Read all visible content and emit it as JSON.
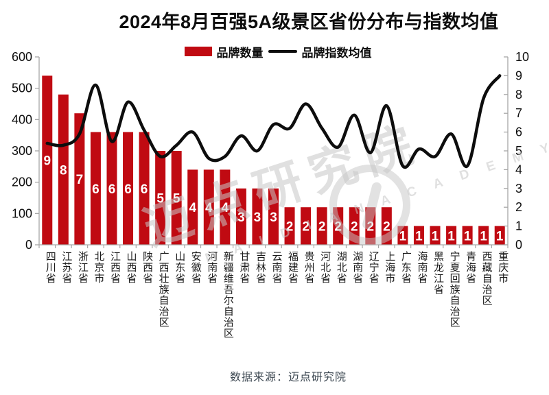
{
  "header": {
    "title": "2024年8月百强5A级景区省份分布与指数均值"
  },
  "legend": {
    "bar_label": "品牌数量",
    "line_label": "品牌指数均值"
  },
  "watermark": {
    "cn": "迈点研究院",
    "en": "M A I D I A N   A C A D E M Y"
  },
  "footer": {
    "source": "数据来源：迈点研究院"
  },
  "colors": {
    "bar": "#c00a12",
    "line": "#0d0d0d",
    "axis": "#a6a6a6",
    "axis_text": "#0d0d0d",
    "bar_label_text": "#ffffff",
    "source_text": "#3d4852",
    "watermark": "#c6c6c6"
  },
  "chart_data": {
    "type": "bar+line",
    "title": "2024年8月百强5A级景区省份分布与指数均值",
    "legend_position": "top",
    "grid": false,
    "categories": [
      "四川省",
      "江苏省",
      "浙江省",
      "北京市",
      "江西省",
      "山西省",
      "陕西省",
      "广西壮族自治区",
      "山东省",
      "安徽省",
      "河南省",
      "新疆维吾尔自治区",
      "甘肃省",
      "吉林省",
      "云南省",
      "福建省",
      "贵州省",
      "河北省",
      "湖北省",
      "湖南省",
      "辽宁省",
      "上海市",
      "广东省",
      "海南省",
      "黑龙江省",
      "宁夏回族自治区",
      "青海省",
      "西藏自治区",
      "重庆市"
    ],
    "series": [
      {
        "name": "品牌数量",
        "kind": "bar",
        "axis": "left",
        "unit_scale": 60,
        "values": [
          9,
          8,
          7,
          6,
          6,
          6,
          6,
          5,
          5,
          4,
          4,
          4,
          3,
          3,
          3,
          2,
          2,
          2,
          2,
          2,
          2,
          2,
          1,
          1,
          1,
          1,
          1,
          1,
          1
        ]
      },
      {
        "name": "品牌指数均值",
        "kind": "line",
        "axis": "right",
        "values": [
          5.4,
          5.3,
          5.9,
          8.5,
          5.5,
          7.6,
          6.1,
          4.7,
          5.3,
          6.0,
          4.6,
          4.7,
          5.8,
          5.0,
          6.4,
          6.2,
          7.5,
          6.2,
          5.2,
          6.9,
          4.9,
          7.4,
          4.2,
          5.1,
          4.7,
          5.9,
          4.2,
          7.8,
          9.0
        ]
      }
    ],
    "left_axis": {
      "range": [
        0,
        600
      ],
      "ticks": [
        0,
        100,
        200,
        300,
        400,
        500,
        600
      ]
    },
    "right_axis": {
      "range": [
        0,
        10
      ],
      "ticks": [
        0,
        1,
        2,
        3,
        4,
        5,
        6,
        7,
        8,
        9,
        10
      ]
    }
  }
}
